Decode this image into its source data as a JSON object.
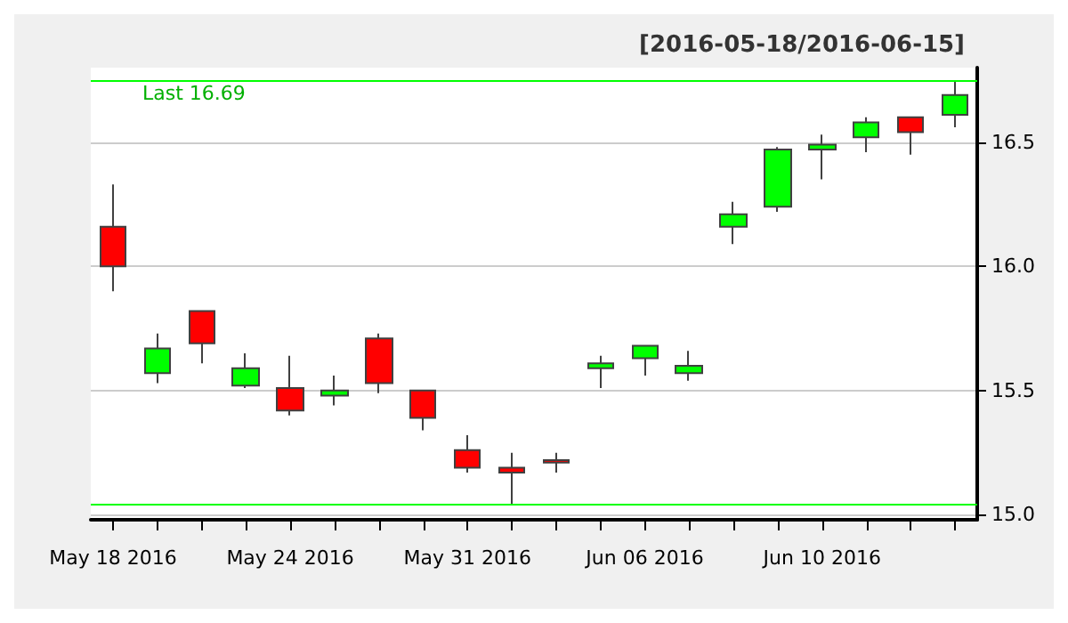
{
  "chart_data": {
    "type": "candlestick",
    "title": "[2016-05-18/2016-06-15]",
    "categories": [
      "May 18 2016",
      null,
      null,
      null,
      "May 24 2016",
      null,
      null,
      null,
      "May 31 2016",
      null,
      null,
      null,
      "Jun 06 2016",
      null,
      null,
      null,
      "Jun 10 2016",
      null,
      null,
      null
    ],
    "ohlc": [
      [
        16.16,
        16.33,
        15.9,
        16.0
      ],
      [
        15.57,
        15.73,
        15.53,
        15.67
      ],
      [
        15.82,
        15.82,
        15.61,
        15.69
      ],
      [
        15.52,
        15.65,
        15.51,
        15.59
      ],
      [
        15.51,
        15.64,
        15.4,
        15.42
      ],
      [
        15.48,
        15.56,
        15.44,
        15.5
      ],
      [
        15.71,
        15.73,
        15.49,
        15.53
      ],
      [
        15.5,
        15.5,
        15.34,
        15.39
      ],
      [
        15.26,
        15.32,
        15.17,
        15.19
      ],
      [
        15.19,
        15.25,
        15.04,
        15.17
      ],
      [
        15.22,
        15.25,
        15.17,
        15.21
      ],
      [
        15.59,
        15.64,
        15.51,
        15.61
      ],
      [
        15.63,
        15.68,
        15.56,
        15.68
      ],
      [
        15.57,
        15.66,
        15.54,
        15.6
      ],
      [
        16.16,
        16.26,
        16.09,
        16.21
      ],
      [
        16.24,
        16.48,
        16.22,
        16.47
      ],
      [
        16.47,
        16.53,
        16.35,
        16.49
      ],
      [
        16.52,
        16.6,
        16.46,
        16.58
      ],
      [
        16.6,
        16.6,
        16.45,
        16.54
      ],
      [
        16.61,
        16.75,
        16.56,
        16.69
      ]
    ],
    "ylim": [
      14.98,
      16.8
    ],
    "yticks": [
      {
        "value": 15,
        "label": "15.0"
      },
      {
        "value": 15.5,
        "label": "15.5"
      },
      {
        "value": 16,
        "label": "16.0"
      },
      {
        "value": 16.5,
        "label": "16.5"
      }
    ],
    "grid": "y",
    "ref_lines": [
      {
        "axis": "y",
        "value": 16.75,
        "color": "#00ff00"
      },
      {
        "axis": "y",
        "value": 15.04,
        "color": "#00ff00"
      }
    ],
    "annotations": [
      "Last 16.69"
    ]
  }
}
